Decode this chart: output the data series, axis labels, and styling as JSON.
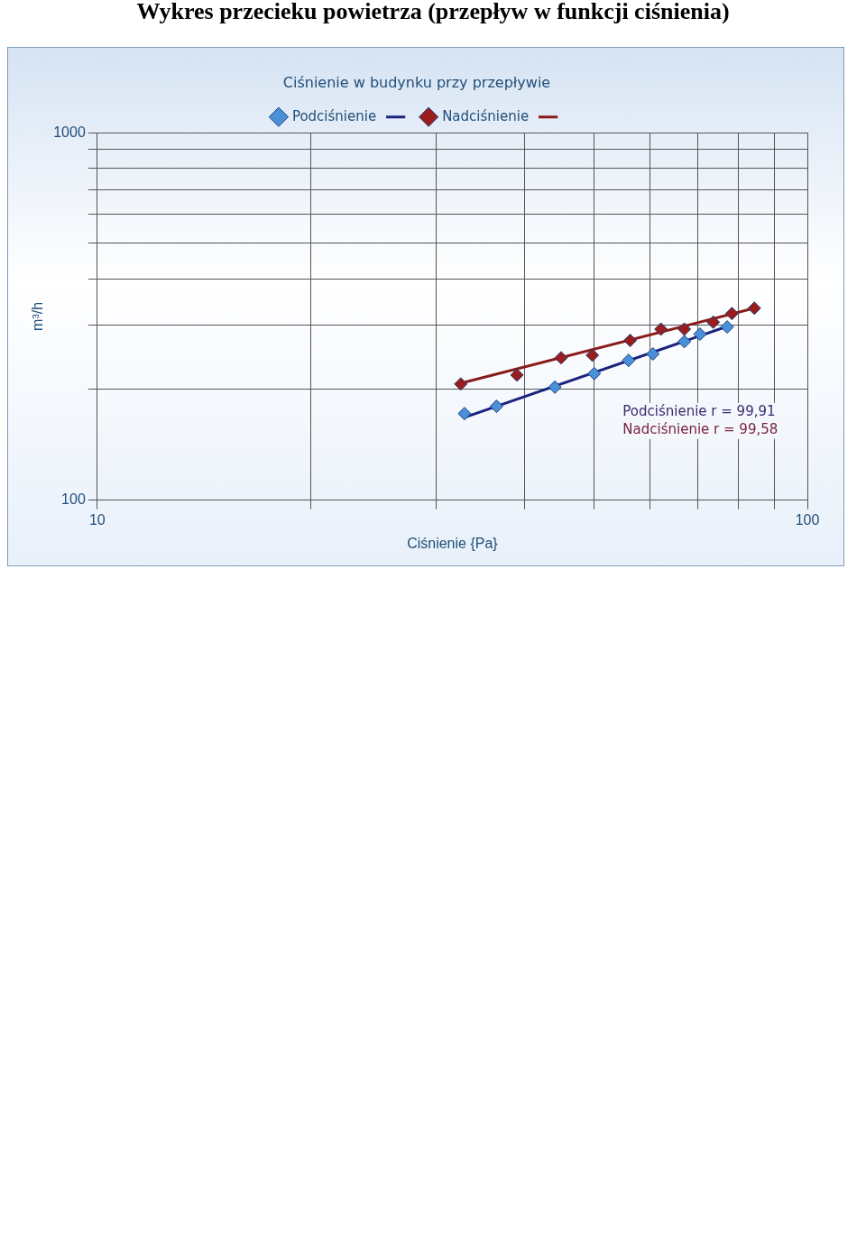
{
  "chart_data": {
    "type": "scatter",
    "title": "Wykres przecieku powietrza (przepływ w funkcji ciśnienia)",
    "subtitle": "Ciśnienie w budynku przy przepływie",
    "xlabel": "Ciśnienie {Pa}",
    "ylabel": "m³/h",
    "log": "xy",
    "grid": true,
    "legend": "top",
    "marker": "diamond",
    "xlim": [
      10,
      100
    ],
    "xticks": [
      10,
      {
        "value": 20,
        "label": null
      },
      {
        "value": 30,
        "label": null
      },
      {
        "value": 40,
        "label": null
      },
      {
        "value": 50,
        "label": null
      },
      {
        "value": 60,
        "label": null
      },
      {
        "value": 70,
        "label": null
      },
      {
        "value": 80,
        "label": null
      },
      {
        "value": 90,
        "label": null
      },
      100
    ],
    "ylim": [
      100,
      1000
    ],
    "yticks": [
      100,
      {
        "value": 200,
        "label": null
      },
      {
        "value": 300,
        "label": null
      },
      {
        "value": 400,
        "label": null
      },
      {
        "value": 500,
        "label": null
      },
      {
        "value": 600,
        "label": null
      },
      {
        "value": 700,
        "label": null
      },
      {
        "value": 800,
        "label": null
      },
      {
        "value": 900,
        "label": null
      },
      1000
    ],
    "annotations": [
      "Podciśnienie r = 99,91",
      "Nadciśnienie r = 99,58"
    ],
    "series": [
      {
        "name": "Podciśnienie",
        "color": "#4a90d9",
        "x": [
          32.9,
          36.5,
          44.1,
          50.1,
          56,
          60.6,
          67.1,
          70.6,
          77.1
        ],
        "values": [
          172,
          180,
          203,
          221,
          240,
          250,
          270,
          283,
          296
        ]
      },
      {
        "type": "line",
        "marker": "none",
        "color": "#1a237e",
        "x": [
          32.9,
          77.1
        ],
        "values": [
          168,
          297
        ]
      },
      {
        "name": "Nadciśnienie",
        "color": "#9b1c1c",
        "x": [
          32.5,
          39,
          45,
          49.8,
          56.3,
          62.2,
          67.1,
          73.7,
          78.3,
          84.2
        ],
        "values": [
          207,
          219,
          244,
          248,
          272,
          292,
          292,
          305,
          322,
          333
        ]
      },
      {
        "type": "line",
        "marker": "none",
        "color": "#8b1a1a",
        "x": [
          32.5,
          84.2
        ],
        "values": [
          208,
          333
        ]
      }
    ]
  }
}
